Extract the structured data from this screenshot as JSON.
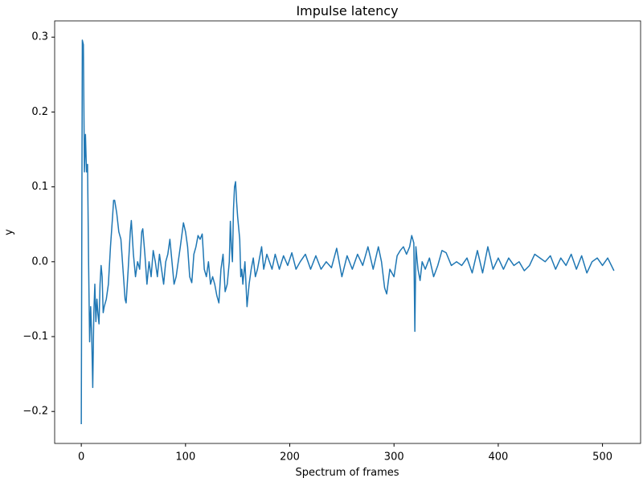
{
  "chart_data": {
    "type": "line",
    "title": "Impulse latency",
    "x_label": "Spectrum of frames",
    "y_label": "y",
    "color": "#1f77b4",
    "grid": false,
    "xlim": [
      -25.55,
      536.55
    ],
    "ylim": [
      -0.2427,
      0.3217
    ],
    "xticks": [
      0,
      100,
      200,
      300,
      400,
      500
    ],
    "yticks": [
      {
        "value": -0.2,
        "label": "−0.2"
      },
      {
        "value": -0.1,
        "label": "−0.1"
      },
      {
        "value": 0,
        "label": "0.0"
      },
      0.1,
      0.2,
      0.3
    ],
    "x": [
      0,
      1,
      2,
      3,
      4,
      5,
      6,
      7,
      8,
      9,
      10,
      11,
      12,
      13,
      14,
      15,
      16,
      17,
      18,
      19,
      20,
      21,
      22,
      24,
      26,
      28,
      30,
      31,
      32,
      34,
      36,
      38,
      40,
      42,
      43,
      45,
      47,
      48,
      50,
      52,
      54,
      56,
      58,
      59,
      61,
      63,
      65,
      67,
      69,
      71,
      73,
      75,
      77,
      79,
      81,
      83,
      85,
      87,
      89,
      91,
      93,
      95,
      98,
      100,
      102,
      104,
      106,
      108,
      110,
      112,
      114,
      116,
      118,
      120,
      122,
      124,
      126,
      128,
      130,
      132,
      134,
      136,
      138,
      140,
      142,
      143,
      144,
      145,
      146,
      147,
      148,
      149,
      150,
      152,
      153,
      154,
      155,
      157,
      159,
      161,
      163,
      165,
      167,
      169,
      171,
      173,
      175,
      178,
      180,
      183,
      186,
      190,
      194,
      198,
      202,
      206,
      210,
      215,
      220,
      225,
      230,
      235,
      240,
      245,
      250,
      255,
      260,
      265,
      270,
      275,
      280,
      285,
      288,
      291,
      293,
      296,
      300,
      303,
      306,
      309,
      312,
      315,
      317,
      319,
      320,
      321,
      323,
      325,
      327,
      330,
      334,
      338,
      342,
      346,
      350,
      355,
      360,
      365,
      370,
      375,
      380,
      385,
      390,
      395,
      400,
      405,
      410,
      415,
      420,
      425,
      430,
      435,
      440,
      445,
      450,
      455,
      460,
      465,
      470,
      475,
      480,
      485,
      490,
      495,
      500,
      505,
      511
    ],
    "values": [
      -0.217,
      0.296,
      0.29,
      0.12,
      0.17,
      0.12,
      0.13,
      0.0,
      -0.107,
      -0.06,
      -0.1,
      -0.168,
      -0.07,
      -0.03,
      -0.08,
      -0.05,
      -0.07,
      -0.083,
      -0.03,
      -0.005,
      -0.02,
      -0.068,
      -0.06,
      -0.05,
      -0.03,
      0.02,
      0.06,
      0.082,
      0.082,
      0.065,
      0.04,
      0.03,
      -0.01,
      -0.05,
      -0.055,
      -0.01,
      0.04,
      0.055,
      0.01,
      -0.02,
      0.0,
      -0.01,
      0.04,
      0.044,
      0.01,
      -0.03,
      0.0,
      -0.02,
      0.015,
      0.0,
      -0.02,
      0.01,
      -0.01,
      -0.03,
      0.0,
      0.01,
      0.03,
      0.0,
      -0.03,
      -0.02,
      0.0,
      0.02,
      0.052,
      0.04,
      0.02,
      -0.02,
      -0.028,
      0.01,
      0.02,
      0.035,
      0.03,
      0.037,
      -0.01,
      -0.02,
      0.0,
      -0.03,
      -0.02,
      -0.03,
      -0.045,
      -0.055,
      -0.01,
      0.01,
      -0.04,
      -0.03,
      0.0,
      0.054,
      0.02,
      0.0,
      0.07,
      0.1,
      0.107,
      0.08,
      0.06,
      0.03,
      -0.02,
      -0.01,
      -0.03,
      0.0,
      -0.06,
      -0.03,
      -0.01,
      0.005,
      -0.02,
      -0.01,
      0.005,
      0.02,
      -0.01,
      0.01,
      0.002,
      -0.01,
      0.01,
      -0.01,
      0.008,
      -0.005,
      0.012,
      -0.01,
      0.0,
      0.01,
      -0.01,
      0.008,
      -0.01,
      0.0,
      -0.008,
      0.018,
      -0.02,
      0.008,
      -0.01,
      0.01,
      -0.005,
      0.02,
      -0.01,
      0.02,
      0.0,
      -0.035,
      -0.043,
      -0.01,
      -0.02,
      0.008,
      0.015,
      0.02,
      0.01,
      0.02,
      0.035,
      0.025,
      -0.093,
      0.02,
      -0.01,
      -0.025,
      0.0,
      -0.01,
      0.005,
      -0.02,
      -0.005,
      0.015,
      0.012,
      -0.005,
      0.0,
      -0.005,
      0.005,
      -0.015,
      0.015,
      -0.015,
      0.02,
      -0.01,
      0.005,
      -0.01,
      0.005,
      -0.005,
      0.0,
      -0.012,
      -0.005,
      0.01,
      0.005,
      0.0,
      0.008,
      -0.01,
      0.005,
      -0.005,
      0.01,
      -0.01,
      0.008,
      -0.015,
      0.0,
      0.005,
      -0.005,
      0.005,
      -0.012
    ]
  }
}
